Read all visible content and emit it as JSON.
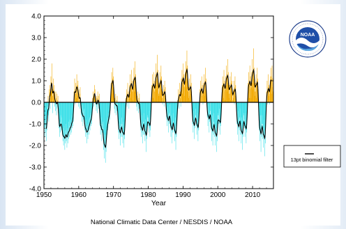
{
  "chart_data": {
    "type": "bar",
    "title": "",
    "xlabel": "Year",
    "ylabel": "",
    "xlim": [
      1950,
      2016
    ],
    "ylim": [
      -4.0,
      4.0
    ],
    "x_ticks": [
      1950,
      1960,
      1970,
      1980,
      1990,
      2000,
      2010
    ],
    "y_ticks": [
      "4.0",
      "3.0",
      "2.0",
      "1.0",
      "0.0",
      "-1.0",
      "-2.0",
      "-3.0",
      "-4.0"
    ],
    "grid": false,
    "series": [
      {
        "kind": "monthly_bars",
        "color_positive": "#f2a900",
        "color_negative": "#3fe0e8",
        "start": 1950,
        "step": 0.08333,
        "values": [
          -0.5,
          -1.2,
          -0.9,
          -1.6,
          -1.1,
          -0.6,
          -1.4,
          -1.8,
          -0.8,
          -1.3,
          -1.0,
          -0.4,
          -0.2,
          0.3,
          -0.6,
          -0.9,
          -0.4,
          0.6,
          0.8,
          0.2,
          -0.3,
          0.4,
          1.2,
          0.7,
          0.5,
          1.8,
          0.9,
          0.3,
          -0.5,
          0.6,
          1.1,
          0.2,
          0.8,
          0.4,
          -0.2,
          0.5,
          -0.1,
          -0.4,
          0.5,
          0.2,
          -0.6,
          -0.3,
          0.4,
          0.1,
          -0.2,
          0.3,
          -0.5,
          -0.1,
          -1.2,
          -0.8,
          -1.6,
          -1.1,
          -0.9,
          -1.4,
          -0.6,
          -1.0,
          -1.3,
          -0.7,
          -1.1,
          -1.5,
          -1.4,
          -1.8,
          -1.2,
          -2.0,
          -1.6,
          -1.1,
          -1.7,
          -2.2,
          -1.3,
          -1.9,
          -1.5,
          -1.0,
          -1.8,
          -1.3,
          -2.1,
          -1.6,
          -1.2,
          -1.9,
          -1.4,
          -0.9,
          -1.7,
          -1.2,
          -1.6,
          -1.1,
          -1.3,
          -0.8,
          -1.5,
          -1.0,
          -1.4,
          -0.9,
          -0.6,
          -1.2,
          -0.8,
          -1.1,
          -0.5,
          -0.9,
          -0.2,
          0.5,
          0.3,
          1.1,
          0.6,
          -0.1,
          0.4,
          0.9,
          0.2,
          0.7,
          1.3,
          0.4,
          0.8,
          0.3,
          1.0,
          0.5,
          -0.2,
          0.6,
          0.1,
          -0.3,
          0.4,
          0.7,
          0.2,
          -0.1,
          -0.6,
          -0.2,
          -0.9,
          -0.5,
          -0.1,
          -0.7,
          -1.1,
          -0.4,
          -0.8,
          -0.3,
          -0.6,
          -1.0,
          -1.3,
          -0.9,
          -1.6,
          -1.2,
          -0.8,
          -1.4,
          -1.9,
          -1.1,
          -1.5,
          -1.0,
          -1.7,
          -1.3,
          -1.2,
          -0.8,
          -1.5,
          -1.0,
          -0.7,
          -1.3,
          -0.9,
          -0.5,
          -1.1,
          -0.6,
          -1.0,
          -0.7,
          -0.4,
          0.2,
          -0.3,
          0.5,
          0.1,
          -0.2,
          0.4,
          0.8,
          0.3,
          0.6,
          0.2,
          -0.1,
          0.1,
          -0.4,
          0.3,
          -0.2,
          -0.5,
          0.2,
          0.5,
          -0.1,
          0.3,
          -0.3,
          0.1,
          0.4,
          -0.6,
          -1.1,
          -0.8,
          -1.5,
          -1.0,
          -0.7,
          -1.3,
          -1.8,
          -1.0,
          -1.4,
          -0.9,
          -1.2,
          -1.7,
          -2.2,
          -1.4,
          -2.6,
          -1.9,
          -1.5,
          -2.1,
          -2.8,
          -1.7,
          -2.3,
          -1.6,
          -1.2,
          -1.5,
          -1.1,
          -0.7,
          -1.3,
          -0.9,
          -0.5,
          -1.0,
          -0.6,
          -0.3,
          -0.8,
          -0.4,
          -0.1,
          0.3,
          0.9,
          0.5,
          1.4,
          0.8,
          0.4,
          1.1,
          1.6,
          0.7,
          1.2,
          0.6,
          0.2,
          -0.3,
          0.2,
          -0.5,
          -0.1,
          0.4,
          -0.2,
          -0.6,
          0.1,
          -0.4,
          0.3,
          -0.1,
          -0.5,
          -0.9,
          -1.4,
          -1.0,
          -1.7,
          -1.2,
          -0.8,
          -1.5,
          -2.0,
          -1.1,
          -1.6,
          -1.0,
          -0.7,
          -1.2,
          -1.6,
          -1.0,
          -1.9,
          -1.4,
          -0.9,
          -1.5,
          -2.1,
          -1.2,
          -1.7,
          -1.1,
          -0.8,
          -0.4,
          0.2,
          -0.1,
          0.6,
          0.3,
          -0.2,
          0.4,
          0.9,
          0.1,
          0.5,
          0.2,
          -0.3,
          0.3,
          0.8,
          0.4,
          1.3,
          0.7,
          0.2,
          0.9,
          1.5,
          0.6,
          1.0,
          0.5,
          0.1,
          0.6,
          1.1,
          0.7,
          1.6,
          1.0,
          0.5,
          1.2,
          1.9,
          0.8,
          1.3,
          0.7,
          0.3,
          -0.2,
          0.3,
          -0.4,
          0.1,
          0.5,
          -0.1,
          -0.5,
          0.2,
          -0.3,
          0.4,
          0.0,
          -0.4,
          -0.8,
          -1.3,
          -0.9,
          -1.6,
          -1.1,
          -0.6,
          -1.4,
          -1.9,
          -1.0,
          -1.5,
          -0.9,
          -0.5,
          -1.0,
          -1.5,
          -1.1,
          -1.8,
          -1.3,
          -0.8,
          -1.5,
          -2.3,
          -1.2,
          -1.7,
          -1.1,
          -0.7,
          -0.6,
          -1.1,
          -0.7,
          -1.4,
          -0.9,
          -0.4,
          -1.2,
          -1.6,
          -0.8,
          -1.3,
          -0.7,
          -0.3,
          0.2,
          0.8,
          0.4,
          1.3,
          0.7,
          0.2,
          0.9,
          1.4,
          0.6,
          1.0,
          0.5,
          0.1,
          0.7,
          1.3,
          0.8,
          1.8,
          1.1,
          0.6,
          1.4,
          2.2,
          1.0,
          1.5,
          0.9,
          0.4,
          0.3,
          0.9,
          0.5,
          1.4,
          0.8,
          0.3,
          1.1,
          1.7,
          0.6,
          1.2,
          0.7,
          0.2,
          -0.1,
          0.5,
          0.1,
          0.8,
          0.4,
          -0.2,
          0.6,
          1.0,
          0.2,
          0.7,
          0.3,
          -0.1,
          -0.3,
          -0.8,
          -0.4,
          -1.1,
          -0.7,
          -0.2,
          -0.9,
          -1.4,
          -0.6,
          -1.0,
          -0.5,
          -0.1,
          -0.7,
          -1.2,
          -0.8,
          -1.6,
          -1.1,
          -0.6,
          -1.3,
          -1.9,
          -1.0,
          -1.4,
          -0.9,
          -0.5,
          -0.9,
          -1.4,
          -1.0,
          -1.8,
          -1.3,
          -0.7,
          -1.5,
          -2.2,
          -1.1,
          -1.6,
          -1.0,
          -0.6,
          -0.4,
          0.1,
          -0.2,
          0.6,
          0.2,
          -0.3,
          0.4,
          0.9,
          0.1,
          0.5,
          0.2,
          -0.2,
          0.5,
          1.1,
          0.7,
          1.5,
          0.9,
          0.4,
          1.2,
          1.8,
          0.8,
          1.3,
          0.7,
          0.3,
          0.8,
          1.4,
          1.0,
          1.9,
          1.3,
          0.7,
          1.6,
          2.4,
          1.1,
          1.7,
          1.0,
          0.5,
          0.2,
          0.7,
          0.3,
          1.1,
          0.6,
          0.1,
          0.8,
          1.3,
          0.4,
          0.9,
          0.5,
          0.0,
          -0.5,
          -1.0,
          -0.6,
          -1.4,
          -0.9,
          -0.4,
          -1.1,
          -1.7,
          -0.8,
          -1.2,
          -0.7,
          -0.3,
          -0.6,
          -1.1,
          -0.7,
          -1.5,
          -1.0,
          -0.5,
          -1.2,
          -1.8,
          -0.9,
          -1.3,
          -0.8,
          -0.4,
          0.1,
          0.6,
          0.2,
          1.0,
          0.5,
          0.0,
          0.7,
          1.2,
          0.3,
          0.8,
          0.4,
          -0.1,
          0.4,
          0.9,
          0.5,
          1.3,
          0.8,
          0.3,
          1.0,
          1.6,
          0.6,
          1.1,
          0.6,
          0.2,
          -0.2,
          -0.7,
          -0.3,
          -1.1,
          -0.6,
          -0.1,
          -0.8,
          -1.4,
          -0.5,
          -0.9,
          -0.4,
          0.0,
          -0.7,
          -1.3,
          -0.9,
          -1.8,
          -1.2,
          -0.6,
          -1.4,
          -2.0,
          -1.0,
          -1.5,
          -0.9,
          -0.5,
          -1.0,
          -1.6,
          -1.1,
          -2.0,
          -1.4,
          -0.8,
          -1.6,
          -2.3,
          -1.2,
          -1.8,
          -1.1,
          -0.6,
          -0.5,
          -1.0,
          -0.6,
          -1.3,
          -0.8,
          -0.3,
          -1.0,
          -1.5,
          -0.7,
          -1.1,
          -0.6,
          -0.2,
          0.3,
          0.8,
          0.4,
          1.2,
          0.7,
          0.2,
          0.9,
          1.5,
          0.5,
          1.0,
          0.6,
          0.1,
          0.6,
          1.2,
          0.8,
          1.7,
          1.1,
          0.5,
          1.3,
          2.0,
          0.9,
          1.4,
          0.8,
          0.4,
          0.2,
          0.8,
          0.4,
          1.2,
          0.7,
          0.1,
          0.9,
          1.4,
          0.5,
          1.0,
          0.5,
          0.0,
          0.1,
          0.6,
          0.2,
          1.0,
          0.5,
          -0.1,
          0.7,
          1.2,
          0.3,
          0.8,
          0.4,
          -0.1,
          -0.4,
          -1.0,
          -0.6,
          -1.5,
          -1.0,
          -0.4,
          -1.2,
          -1.8,
          -0.8,
          -1.3,
          -0.7,
          -0.3,
          -0.9,
          -1.5,
          -1.0,
          -1.9,
          -1.3,
          -0.7,
          -1.5,
          -2.2,
          -1.1,
          -1.6,
          -1.0,
          -0.5,
          -0.6,
          -1.2,
          -0.8,
          -1.6,
          -1.1,
          -0.5,
          -1.3,
          -1.9,
          -0.9,
          -1.4,
          -0.8,
          -0.4,
          0.2,
          0.9,
          0.5,
          1.4,
          0.8,
          0.2,
          1.0,
          1.7,
          0.6,
          1.2,
          0.7,
          0.2,
          0.7,
          1.4,
          0.9,
          2.0,
          1.3,
          0.6,
          1.5,
          2.5,
          1.1,
          1.6,
          1.0,
          0.5,
          0.3,
          0.9,
          0.5,
          1.3,
          0.8,
          0.2,
          1.0,
          1.6,
          0.6,
          1.1,
          0.6,
          0.1,
          -0.6,
          -1.3,
          -0.9,
          -1.8,
          -1.2,
          -0.6,
          -1.5,
          -2.3,
          -1.1,
          -1.6,
          -1.0,
          -0.6,
          -1.0,
          -1.7,
          -1.2,
          -2.1,
          -1.5,
          -0.8,
          -1.7,
          -2.5,
          -1.3,
          -1.9,
          -1.2,
          -0.7,
          -0.3,
          0.5,
          0.1,
          1.0,
          0.5,
          -0.1,
          0.7,
          1.3,
          0.3,
          0.8,
          0.4,
          -0.1,
          0.6,
          1.2,
          0.8,
          1.6,
          1.0,
          0.4,
          1.2,
          1.7,
          0.7,
          1.1,
          0.5,
          1.0
        ]
      },
      {
        "name": "13pt binomial filter",
        "kind": "line",
        "color": "#000000"
      }
    ],
    "legend": {
      "position": "right",
      "entries": [
        "13pt binomial filter"
      ]
    },
    "credit": "National Climatic Data Center / NESDIS / NOAA",
    "logo": {
      "icon": "noaa-logo",
      "text": "NOAA"
    }
  }
}
